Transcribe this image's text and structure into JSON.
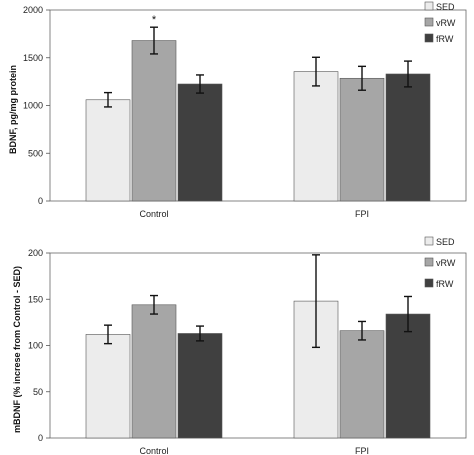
{
  "chart_data": [
    {
      "type": "bar",
      "title": "",
      "xlabel": "",
      "ylabel": "BDNF, pg/mg protein",
      "ylim": [
        0,
        2000
      ],
      "yticks": [
        "0",
        "500",
        "1000",
        "1500",
        "2000"
      ],
      "categories": [
        "Control",
        "FPI"
      ],
      "grid": false,
      "legend_position": "top-right",
      "series": [
        {
          "name": "SED",
          "color": "#ececec",
          "values": [
            1060,
            1355
          ],
          "errors": [
            75,
            150
          ]
        },
        {
          "name": "vRW",
          "color": "#a6a6a6",
          "values": [
            1680,
            1285
          ],
          "errors": [
            140,
            125
          ]
        },
        {
          "name": "fRW",
          "color": "#404040",
          "values": [
            1225,
            1330
          ],
          "errors": [
            95,
            135
          ]
        }
      ],
      "annotations": [
        {
          "text": "*",
          "category": "Control",
          "series": "vRW"
        }
      ]
    },
    {
      "type": "bar",
      "title": "",
      "xlabel": "",
      "ylabel": "mBDNF (% increse from Control - SED)",
      "ylim": [
        0,
        200
      ],
      "yticks": [
        "0",
        "50",
        "100",
        "150",
        "200"
      ],
      "categories": [
        "Control",
        "FPI"
      ],
      "grid": false,
      "legend_position": "top-right",
      "series": [
        {
          "name": "SED",
          "color": "#ececec",
          "values": [
            112,
            148
          ],
          "errors": [
            10,
            50
          ]
        },
        {
          "name": "vRW",
          "color": "#a6a6a6",
          "values": [
            144,
            116
          ],
          "errors": [
            10,
            10
          ]
        },
        {
          "name": "fRW",
          "color": "#404040",
          "values": [
            113,
            134
          ],
          "errors": [
            8,
            19
          ]
        }
      ],
      "annotations": []
    }
  ]
}
